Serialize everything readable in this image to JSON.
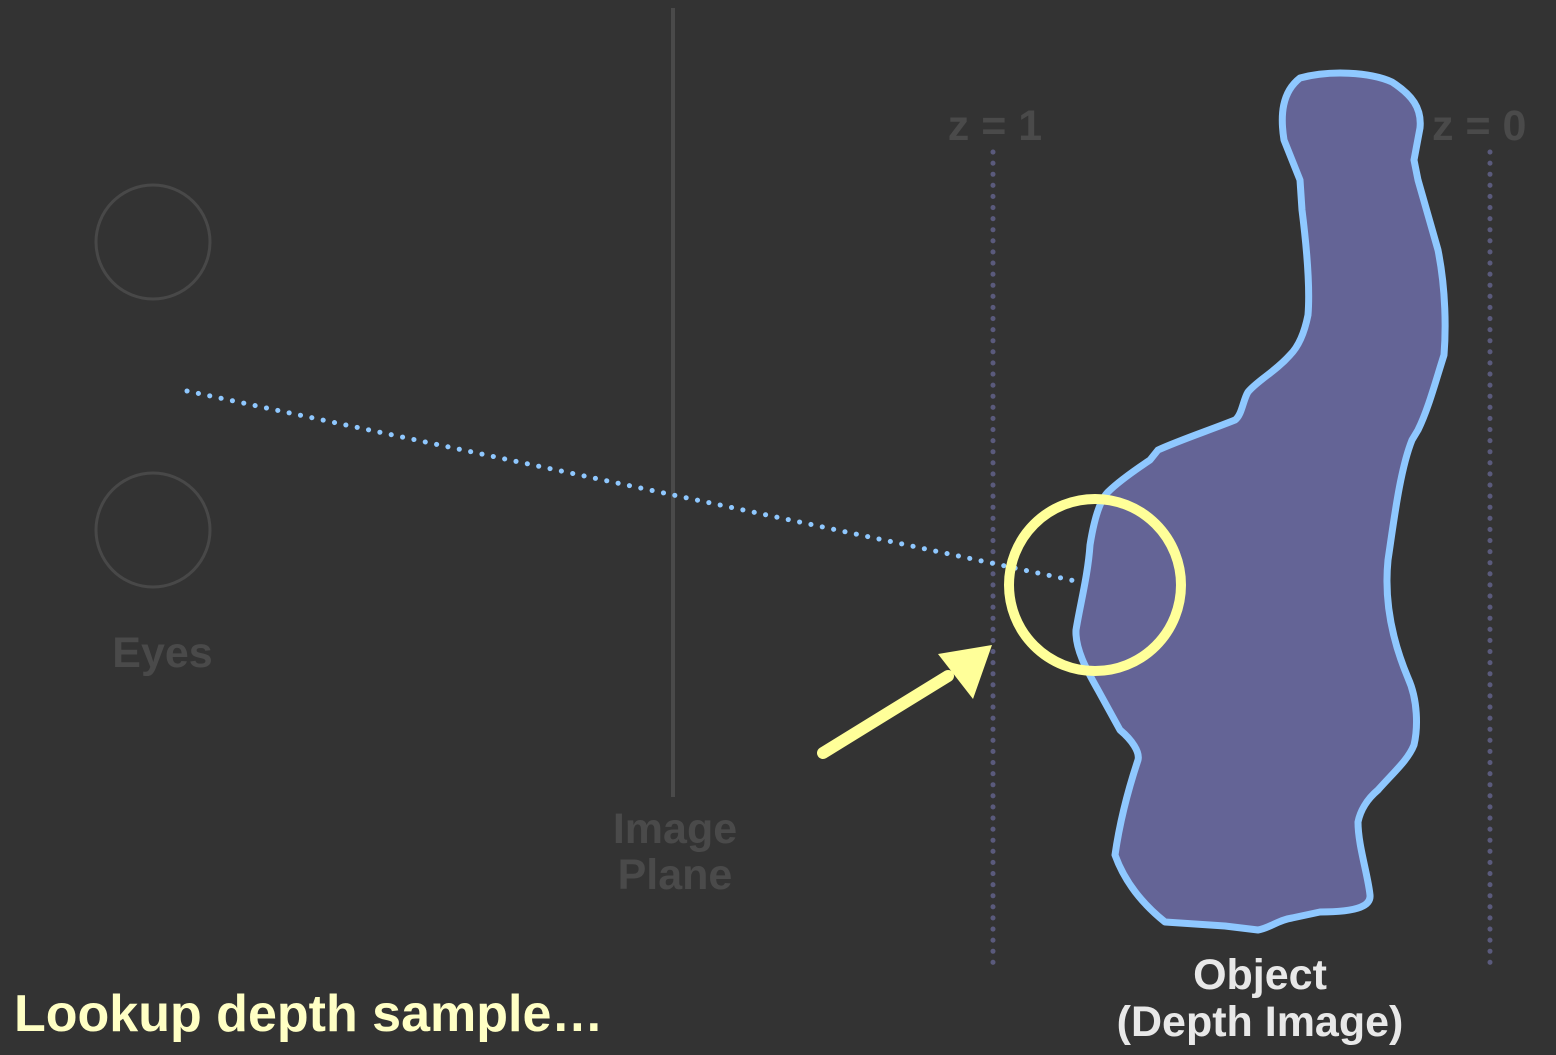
{
  "labels": {
    "eyes": "Eyes",
    "image_plane_line1": "Image",
    "image_plane_line2": "Plane",
    "z_near": "z = 1",
    "z_far": "z = 0",
    "object_line1": "Object",
    "object_line2": "(Depth Image)",
    "caption": "Lookup depth sample…"
  },
  "colors": {
    "background": "#333333",
    "dim_text": "#4a4a4a",
    "object_fill": "#646496",
    "object_outline": "#8fc8ff",
    "ray": "#8fc8ff",
    "highlight": "#ffff99",
    "caption": "#ffffc4"
  }
}
